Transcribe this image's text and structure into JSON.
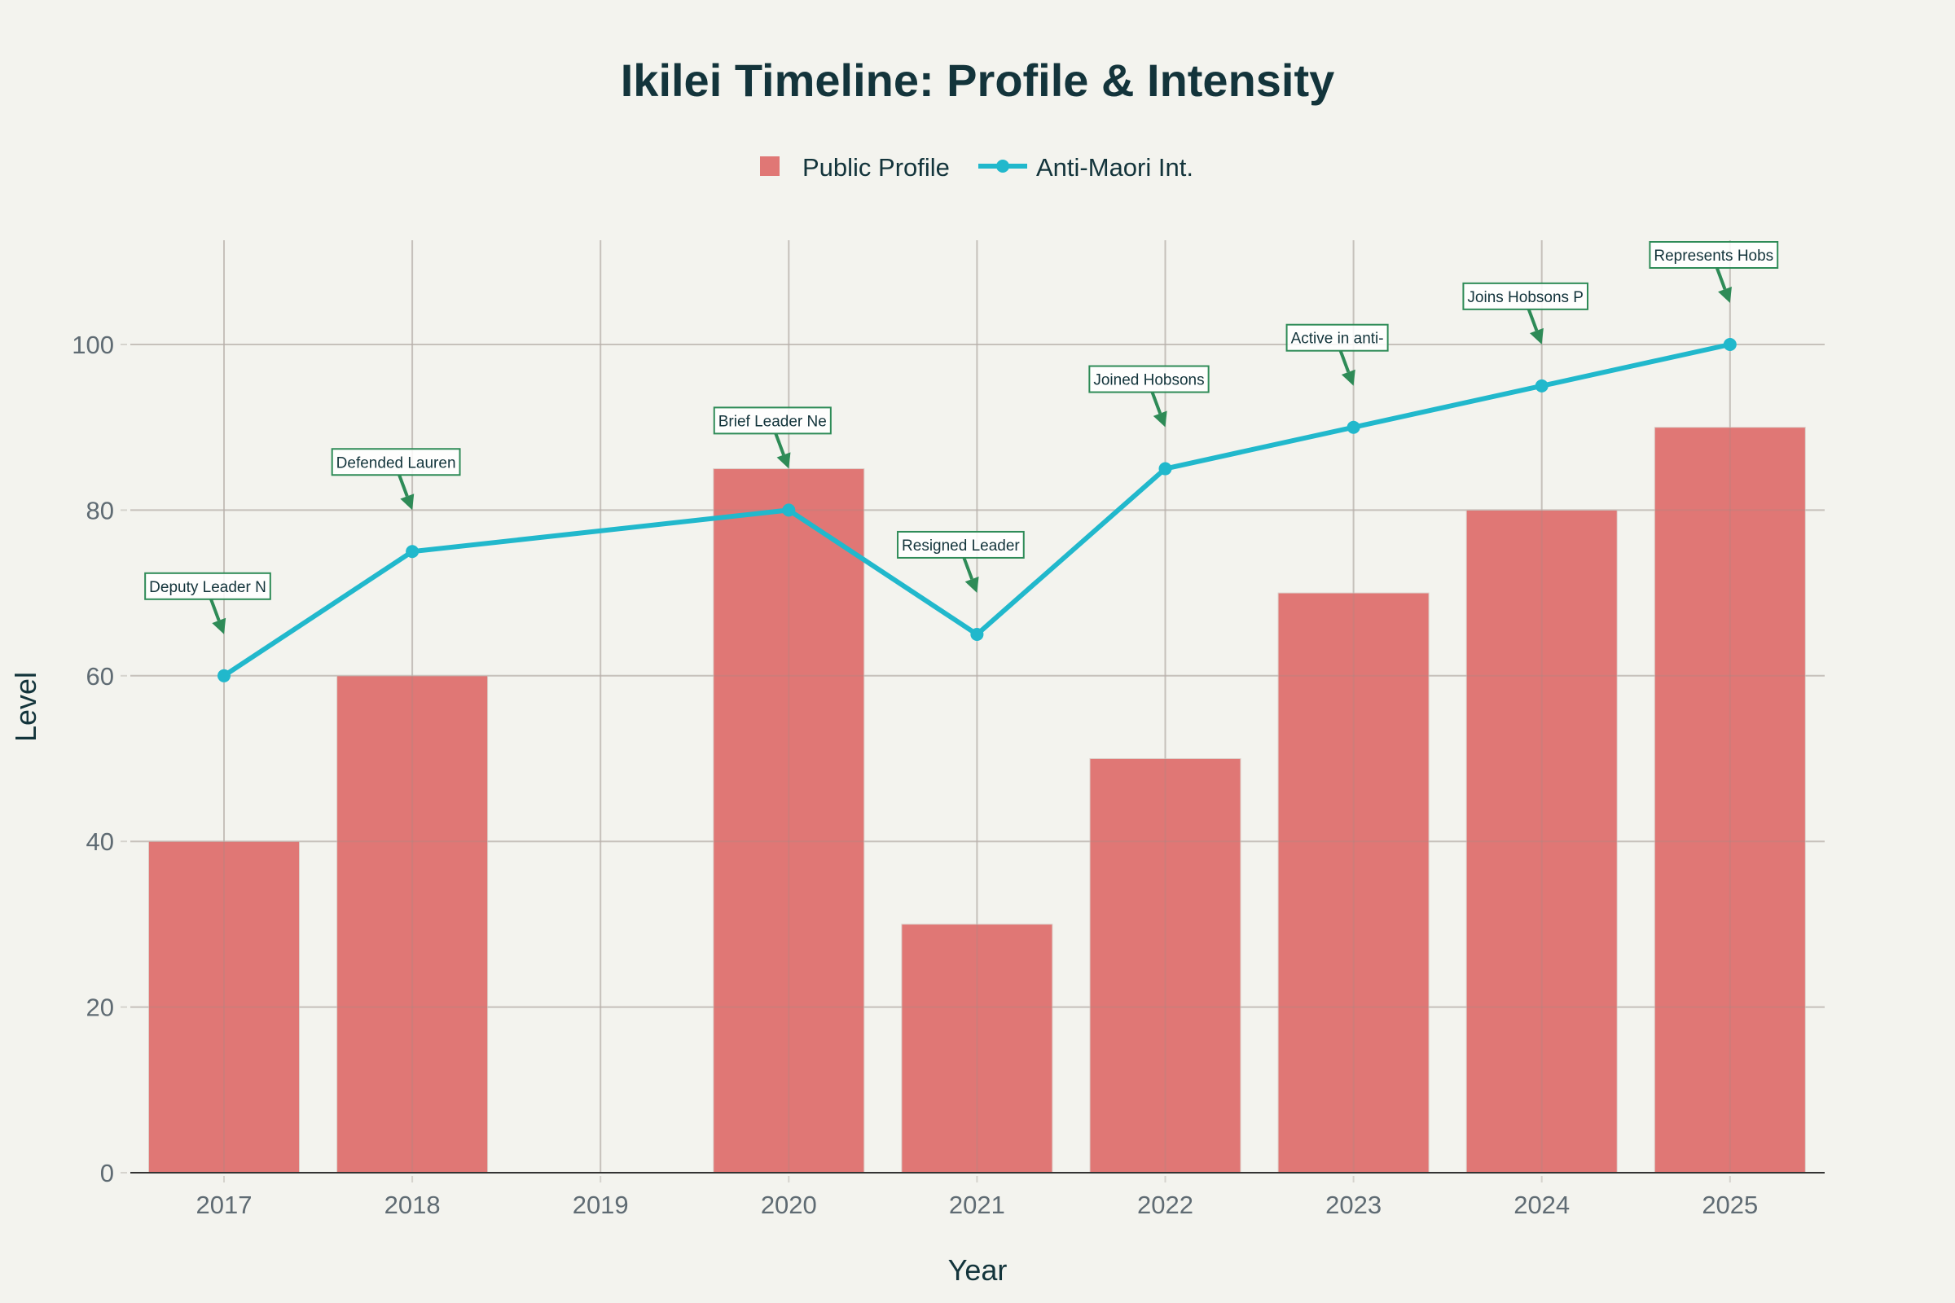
{
  "chart_data": {
    "type": "bar",
    "title": "Ikilei Timeline: Profile & Intensity",
    "xlabel": "Year",
    "ylabel": "Level",
    "categories": [
      "2017",
      "2018",
      "2019",
      "2020",
      "2021",
      "2022",
      "2023",
      "2024",
      "2025"
    ],
    "ylim": [
      0,
      112
    ],
    "yticks": [
      "0",
      "20",
      "40",
      "60",
      "80",
      "100"
    ],
    "grid": true,
    "legend_position": "top-center",
    "series": [
      {
        "name": "Public Profile",
        "type": "bar",
        "color": "#e07775",
        "values": [
          40,
          60,
          null,
          85,
          30,
          50,
          70,
          80,
          90
        ]
      },
      {
        "name": "Anti-Maori Int.",
        "type": "line",
        "color": "#21b8cc",
        "values": [
          60,
          75,
          null,
          80,
          65,
          85,
          90,
          95,
          100
        ]
      }
    ],
    "annotations": [
      {
        "year": "2017",
        "text": "Deputy Leader N"
      },
      {
        "year": "2018",
        "text": "Defended Lauren"
      },
      {
        "year": "2020",
        "text": "Brief Leader Ne"
      },
      {
        "year": "2021",
        "text": "Resigned Leader"
      },
      {
        "year": "2022",
        "text": "Joined Hobsons "
      },
      {
        "year": "2023",
        "text": "Active in anti-"
      },
      {
        "year": "2024",
        "text": "Joins Hobsons P"
      },
      {
        "year": "2025",
        "text": "Represents Hobs"
      }
    ],
    "annotation_color": "#2e8b57"
  }
}
